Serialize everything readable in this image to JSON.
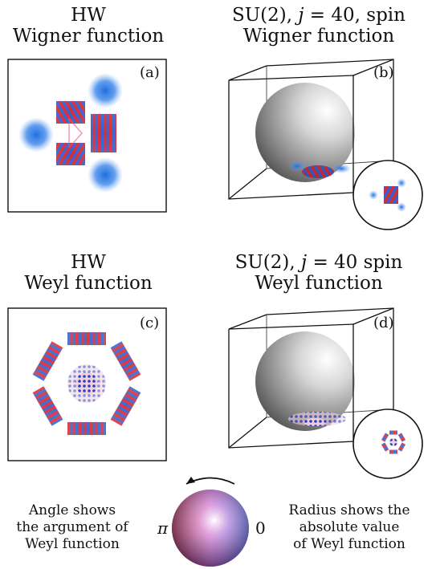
{
  "panels": {
    "a": {
      "title_line1": "HW",
      "title_line2": "Wigner function",
      "label": "(a)"
    },
    "b": {
      "title_line1_pre": "SU(2), ",
      "title_line1_j": "j",
      "title_line1_post": " = 40,  spin",
      "title_line2": "Wigner function",
      "label": "(b)"
    },
    "c": {
      "title_line1": "HW",
      "title_line2": "Weyl function",
      "label": "(c)"
    },
    "d": {
      "title_line1_pre": "SU(2), ",
      "title_line1_j": "j",
      "title_line1_post": " = 40  spin",
      "title_line2": "Weyl function",
      "label": "(d)"
    }
  },
  "legend": {
    "left_line1": "Angle shows",
    "left_line2": "the argument of",
    "left_line3": "Weyl function",
    "right_line1": "Radius shows the",
    "right_line2": "absolute value",
    "right_line3": "of Weyl function",
    "pi_label": "π",
    "zero_label": "0"
  },
  "colors": {
    "positive": "#d6131e",
    "negative": "#1f6fe0",
    "frame": "#111111"
  }
}
